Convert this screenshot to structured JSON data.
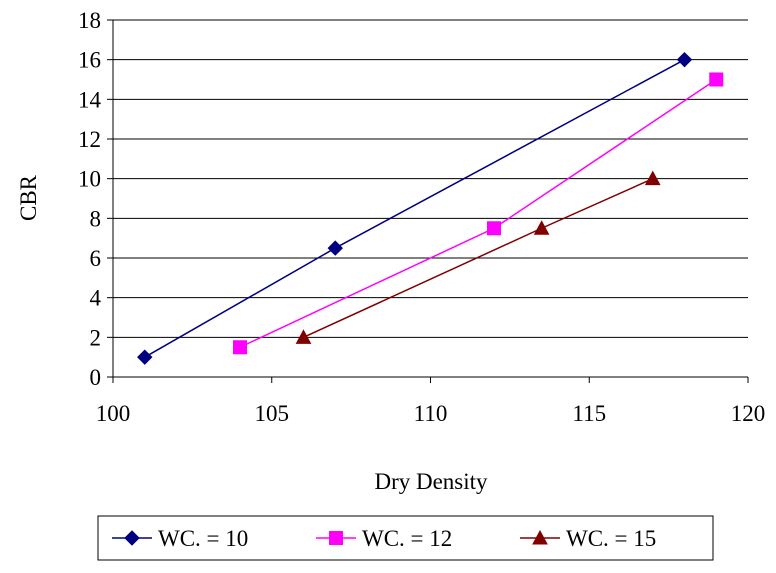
{
  "chart_data": {
    "type": "line",
    "title": "",
    "xlabel": "Dry Density",
    "ylabel": "CBR",
    "xlim": [
      100,
      120
    ],
    "ylim": [
      0,
      18
    ],
    "x_ticks": [
      100,
      105,
      110,
      115,
      120
    ],
    "y_ticks": [
      0,
      2,
      4,
      6,
      8,
      10,
      12,
      14,
      16,
      18
    ],
    "grid": "horizontal",
    "legend_position": "bottom",
    "series": [
      {
        "name": "WC. = 10",
        "color": "#000080",
        "marker": "diamond",
        "x": [
          101,
          107,
          118
        ],
        "y": [
          1,
          6.5,
          16
        ]
      },
      {
        "name": "WC. = 12",
        "color": "#ff00ff",
        "marker": "square",
        "x": [
          104,
          112,
          119
        ],
        "y": [
          1.5,
          7.5,
          15
        ]
      },
      {
        "name": "WC. = 15",
        "color": "#800000",
        "marker": "triangle",
        "x": [
          106,
          113.5,
          117
        ],
        "y": [
          2,
          7.5,
          10
        ]
      }
    ]
  }
}
